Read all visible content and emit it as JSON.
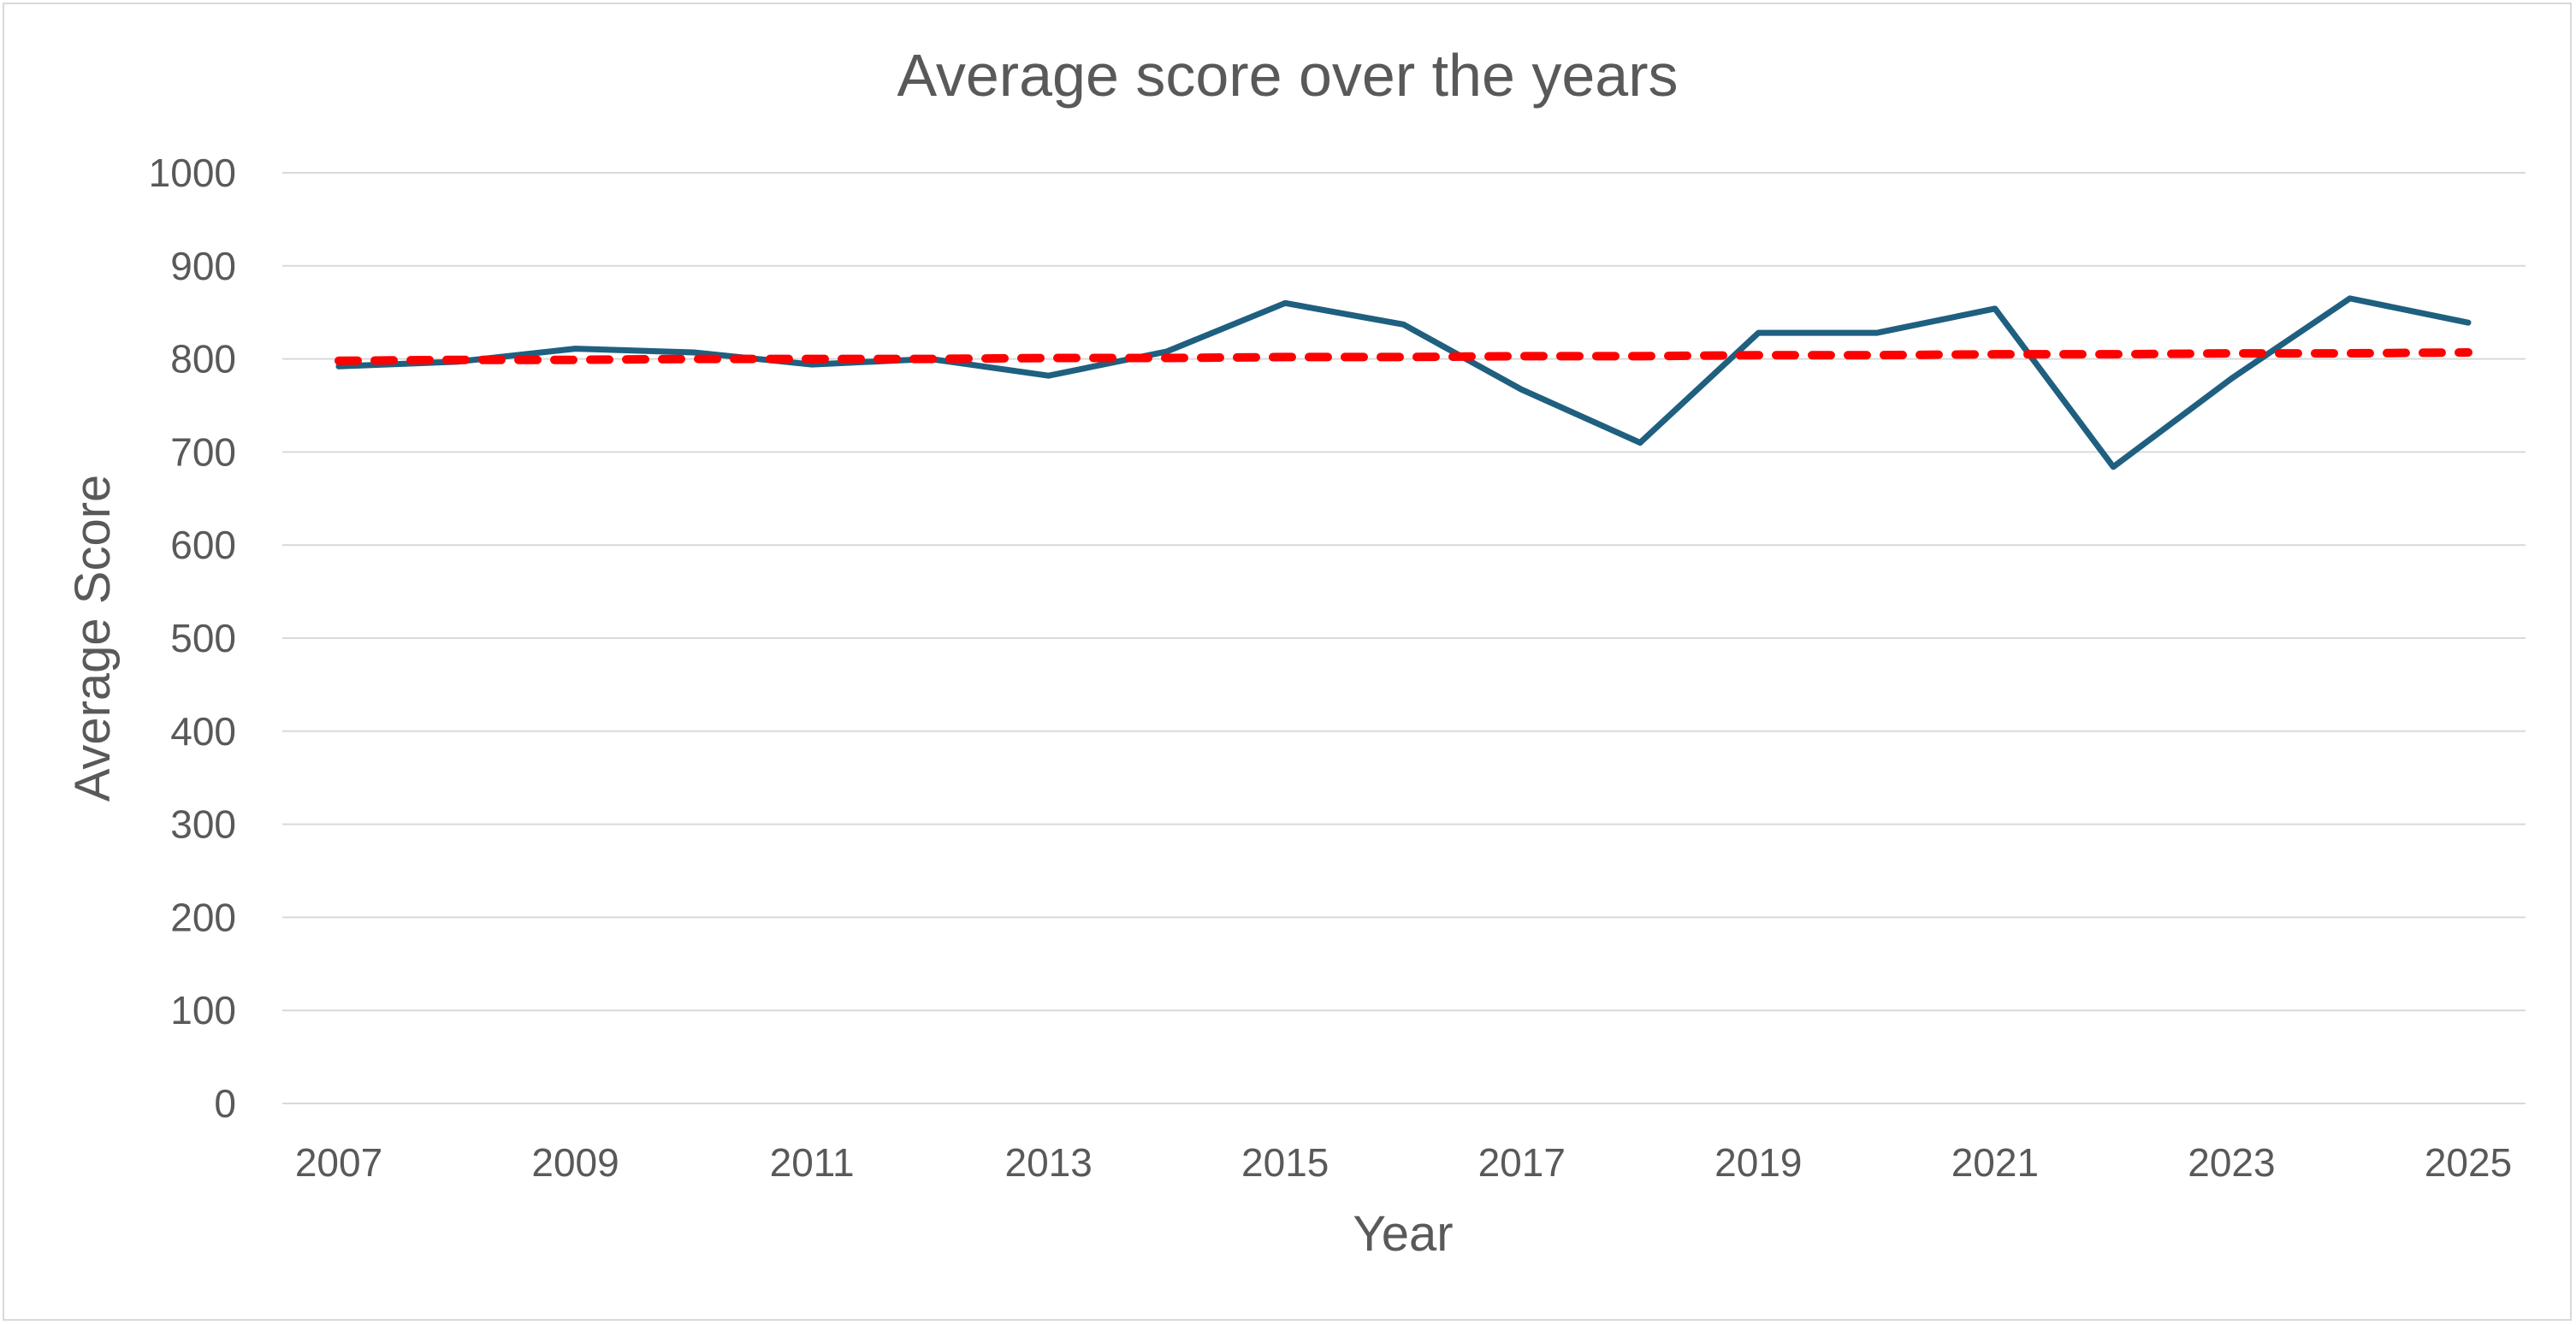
{
  "chart_data": {
    "type": "line",
    "title": "Average score over the years",
    "xlabel": "Year",
    "ylabel": "Average Score",
    "x": [
      2007,
      2008,
      2009,
      2010,
      2011,
      2012,
      2013,
      2014,
      2015,
      2016,
      2017,
      2018,
      2019,
      2020,
      2021,
      2022,
      2023,
      2024,
      2025
    ],
    "x_tick_labels": [
      "2007",
      "2009",
      "2011",
      "2013",
      "2015",
      "2017",
      "2019",
      "2021",
      "2023",
      "2025"
    ],
    "y_tick_labels": [
      "0",
      "100",
      "200",
      "300",
      "400",
      "500",
      "600",
      "700",
      "800",
      "900",
      "1000"
    ],
    "ylim": [
      0,
      1000
    ],
    "grid": true,
    "legend": "none",
    "series": [
      {
        "values": [
          792,
          797,
          811,
          807,
          794,
          800,
          782,
          808,
          860,
          837,
          767,
          710,
          828,
          828,
          854,
          684,
          779,
          865,
          839
        ],
        "color": "#1f5f7f",
        "style": "solid"
      },
      {
        "values": [
          798,
          799,
          799,
          800,
          800,
          800,
          801,
          801,
          802,
          802,
          803,
          803,
          804,
          804,
          805,
          805,
          806,
          806,
          807
        ],
        "color": "#ff0000",
        "style": "dashed",
        "trendline": "linear"
      }
    ]
  }
}
